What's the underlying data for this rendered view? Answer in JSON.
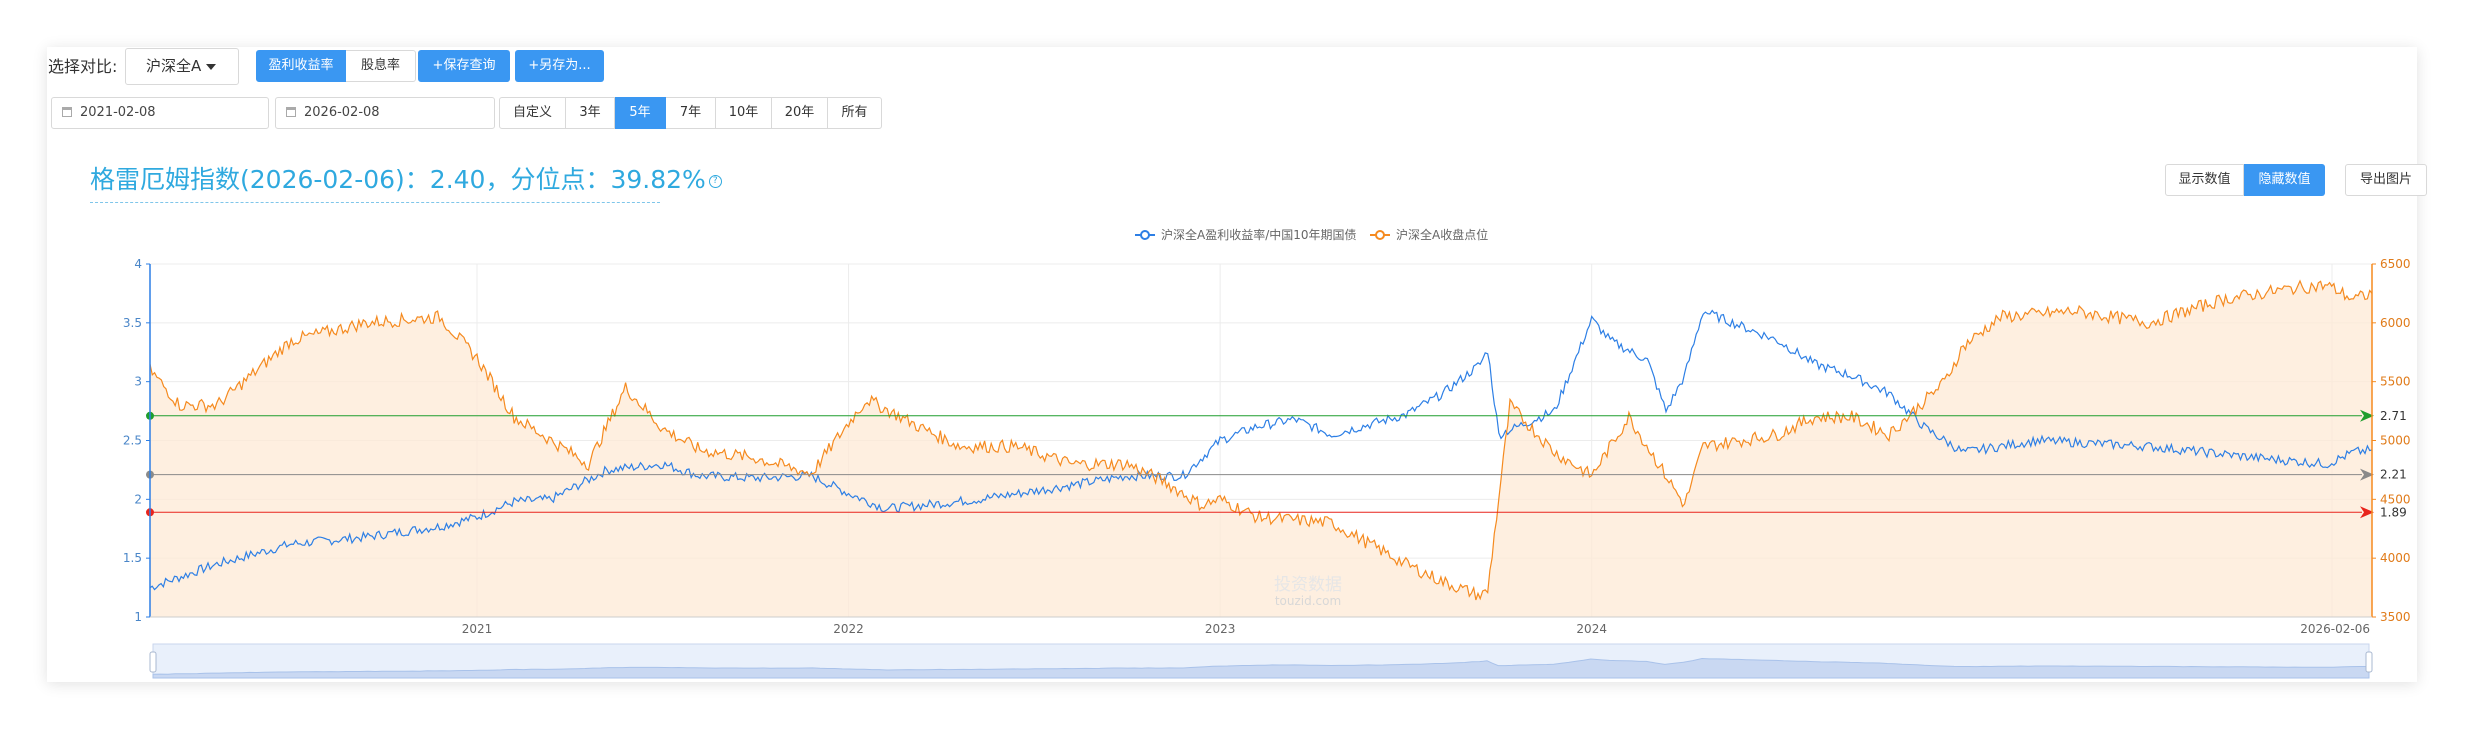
{
  "toolbar": {
    "compare_label": "选择对比:",
    "compare_select": "沪深全A",
    "metric_tabs": [
      "盈利收益率",
      "股息率"
    ],
    "save_query": "+保存查询",
    "save_as": "+另存为..."
  },
  "date_filter": {
    "start_date": "2021-02-08",
    "end_date": "2026-02-08",
    "ranges": [
      "自定义",
      "3年",
      "5年",
      "7年",
      "10年",
      "20年",
      "所有"
    ],
    "active_range": "5年"
  },
  "headline": "格雷厄姆指数(2026-02-06)：2.40，分位点：39.82%",
  "help_icon": "?",
  "actions": {
    "show_values": "显示数值",
    "hide_values": "隐藏数值",
    "export_image": "导出图片"
  },
  "watermark": {
    "line1": "投资数据",
    "line2": "touzid.com"
  },
  "colors": {
    "blue": "#2d7fe5",
    "orange": "#f58a1f",
    "green": "#1f9e2e",
    "gray": "#8a8a8a",
    "red": "#e8241c"
  },
  "chart_data": {
    "type": "line",
    "x_axis": {
      "ticks": [
        "2021",
        "2022",
        "2023",
        "2024"
      ],
      "end_label": "2026-02-06",
      "start": 2020.12,
      "end": 2026.1
    },
    "y_left": {
      "min": 1,
      "max": 4,
      "ticks": [
        "1",
        "1.5",
        "2",
        "2.5",
        "3",
        "3.5",
        "4"
      ]
    },
    "y_right": {
      "min": 3500,
      "max": 6500,
      "ticks": [
        "3500",
        "4000",
        "4500",
        "5000",
        "5500",
        "6000",
        "6500"
      ]
    },
    "legend": [
      "沪深全A盈利收益率/中国10年期国债",
      "沪深全A收盘点位"
    ],
    "reference_lines": [
      {
        "value": 2.71,
        "label": "2.71",
        "color": "green"
      },
      {
        "value": 2.21,
        "label": "2.21",
        "color": "gray"
      },
      {
        "value": 1.89,
        "label": "1.89",
        "color": "red"
      }
    ],
    "series": [
      {
        "name": "沪深全A盈利收益率/中国10年期国债",
        "axis": "left",
        "color": "blue",
        "x": [
          2020.12,
          2020.3,
          2020.5,
          2020.7,
          2020.9,
          2021.0,
          2021.1,
          2021.2,
          2021.35,
          2021.5,
          2021.6,
          2021.75,
          2021.9,
          2022.0,
          2022.1,
          2022.2,
          2022.35,
          2022.5,
          2022.6,
          2022.75,
          2022.9,
          2023.0,
          2023.1,
          2023.2,
          2023.3,
          2023.5,
          2023.6,
          2023.7,
          2023.72,
          2023.75,
          2023.9,
          2024.0,
          2024.05,
          2024.15,
          2024.2,
          2024.25,
          2024.3,
          2024.5,
          2024.6,
          2024.7,
          2024.8,
          2024.9,
          2025.0,
          2025.2,
          2025.5,
          2025.8,
          2025.98,
          2026.05,
          2026.1
        ],
        "y": [
          1.25,
          1.45,
          1.62,
          1.68,
          1.77,
          1.85,
          1.98,
          2.0,
          2.25,
          2.3,
          2.2,
          2.18,
          2.2,
          2.05,
          1.92,
          1.95,
          2.0,
          2.07,
          2.12,
          2.2,
          2.2,
          2.5,
          2.62,
          2.68,
          2.55,
          2.72,
          2.9,
          3.15,
          3.27,
          2.55,
          2.75,
          3.53,
          3.35,
          3.18,
          2.75,
          3.05,
          3.6,
          3.35,
          3.15,
          3.05,
          2.9,
          2.6,
          2.4,
          2.5,
          2.45,
          2.35,
          2.3,
          2.4,
          2.42
        ]
      },
      {
        "name": "沪深全A收盘点位",
        "axis": "right",
        "color": "orange",
        "x": [
          2020.12,
          2020.2,
          2020.3,
          2020.5,
          2020.7,
          2020.9,
          2021.0,
          2021.1,
          2021.2,
          2021.3,
          2021.4,
          2021.5,
          2021.6,
          2021.75,
          2021.9,
          2022.0,
          2022.05,
          2022.2,
          2022.3,
          2022.45,
          2022.6,
          2022.75,
          2022.85,
          2022.95,
          2023.0,
          2023.1,
          2023.3,
          2023.5,
          2023.6,
          2023.7,
          2023.72,
          2023.78,
          2023.9,
          2024.0,
          2024.1,
          2024.25,
          2024.3,
          2024.5,
          2024.6,
          2024.7,
          2024.8,
          2024.95,
          2025.0,
          2025.1,
          2025.3,
          2025.5,
          2025.7,
          2025.9,
          2025.98,
          2026.05,
          2026.1
        ],
        "y": [
          5600,
          5300,
          5300,
          5850,
          6000,
          6050,
          5700,
          5200,
          5000,
          4800,
          5450,
          5100,
          4920,
          4850,
          4720,
          5150,
          5350,
          5100,
          4950,
          4950,
          4800,
          4800,
          4650,
          4450,
          4500,
          4350,
          4300,
          3950,
          3800,
          3680,
          3720,
          5300,
          4900,
          4700,
          5200,
          4450,
          4950,
          5050,
          5200,
          5200,
          5050,
          5500,
          5800,
          6050,
          6100,
          6000,
          6200,
          6300,
          6320,
          6200,
          6250
        ]
      }
    ]
  }
}
